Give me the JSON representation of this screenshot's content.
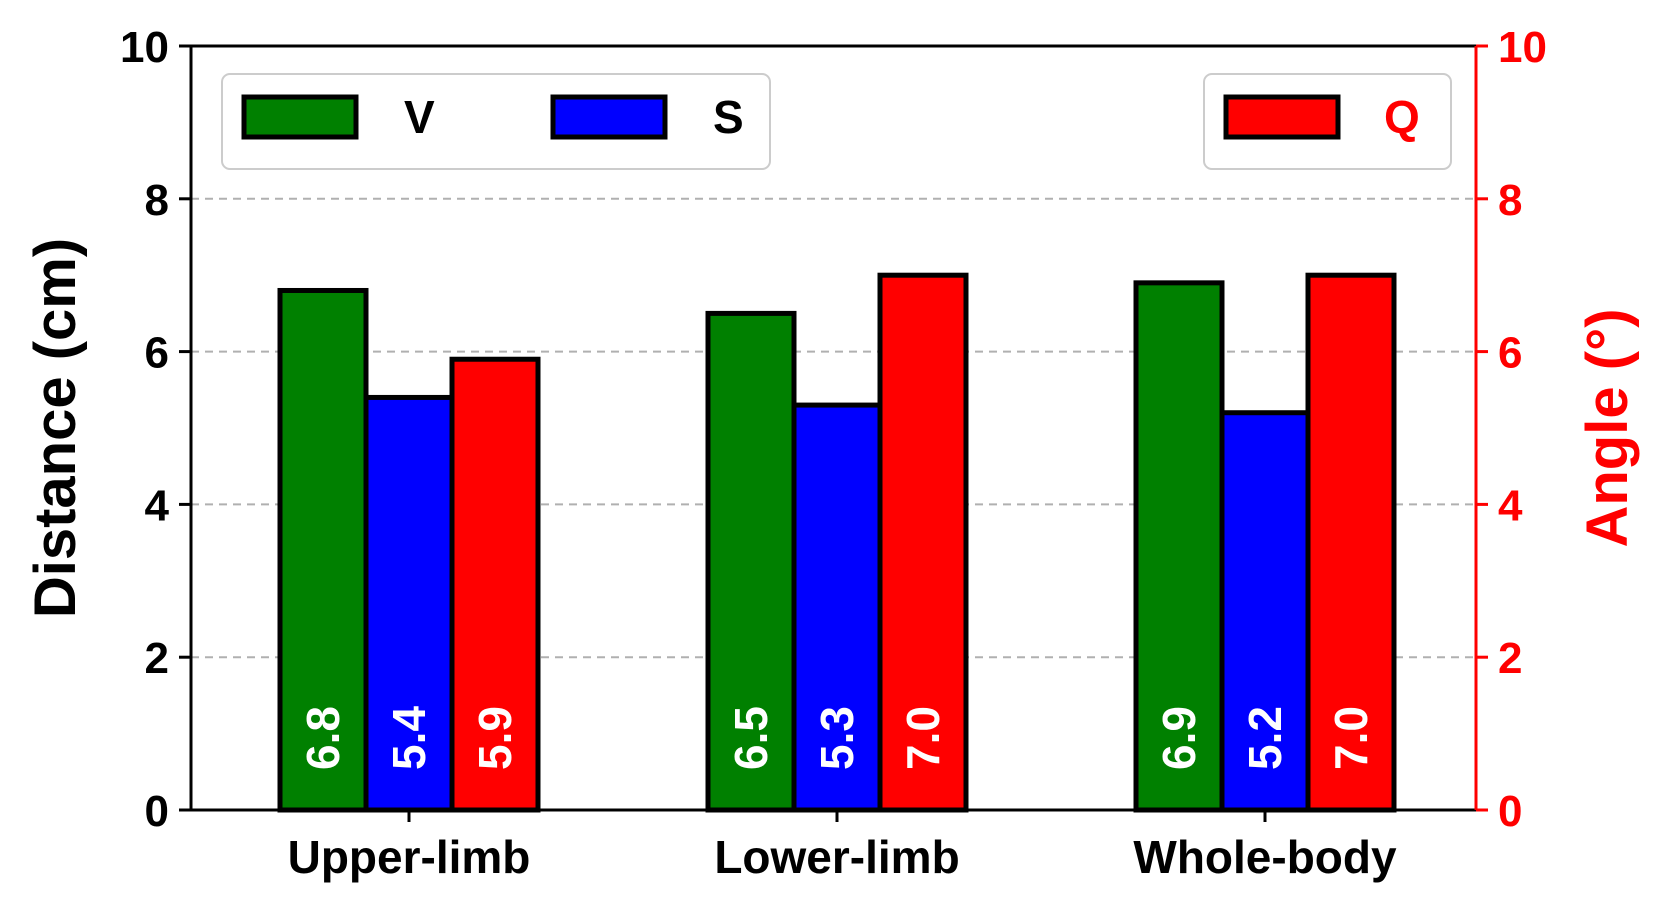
{
  "chart_data": {
    "type": "bar",
    "categories": [
      "Upper-limb",
      "Lower-limb",
      "Whole-body"
    ],
    "series": [
      {
        "name": "V",
        "axis": "left",
        "color": "#008000",
        "label_color": "#ffffff",
        "values": [
          6.8,
          6.5,
          6.9
        ],
        "labels": [
          "6.8",
          "6.5",
          "6.9"
        ]
      },
      {
        "name": "S",
        "axis": "left",
        "color": "#0000ff",
        "label_color": "#ffffff",
        "values": [
          5.4,
          5.3,
          5.2
        ],
        "labels": [
          "5.4",
          "5.3",
          "5.2"
        ]
      },
      {
        "name": "Q",
        "axis": "right",
        "color": "#ff0000",
        "label_color": "#ffffff",
        "values": [
          5.9,
          7.0,
          7.0
        ],
        "labels": [
          "5.9",
          "7.0",
          "7.0"
        ]
      }
    ],
    "ylabel": "Distance (cm)",
    "y2label": "Angle (°)",
    "ylim": [
      0,
      10
    ],
    "y2lim": [
      0,
      10
    ],
    "yticks": [
      "0",
      "2",
      "4",
      "6",
      "8",
      "10"
    ],
    "y2ticks": [
      "0",
      "2",
      "4",
      "6",
      "8",
      "10"
    ],
    "grid": "horizontal dashed",
    "legend_left": {
      "placement": "top-left",
      "entries": [
        "V",
        "S"
      ]
    },
    "legend_right": {
      "placement": "top-right",
      "entries": [
        "Q"
      ]
    },
    "colors": {
      "axis": "#000000",
      "right_axis": "#ff0000",
      "grid": "#b0b0b0"
    }
  }
}
